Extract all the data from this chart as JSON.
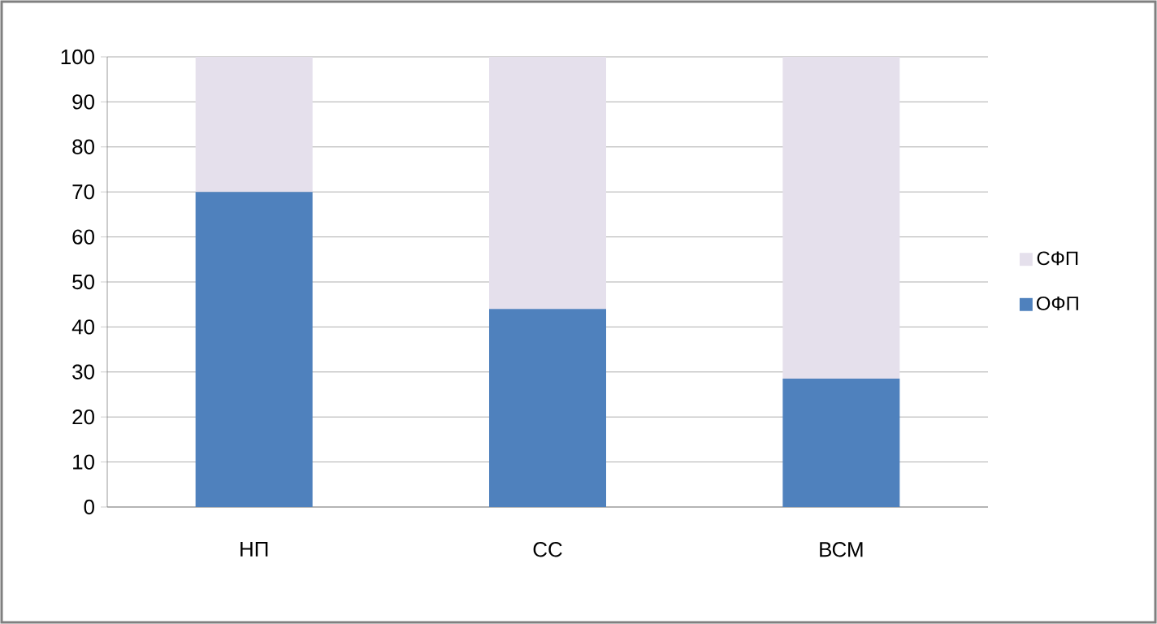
{
  "chart_data": {
    "type": "bar",
    "stacked": true,
    "categories": [
      "НП",
      "СС",
      "ВСМ"
    ],
    "series": [
      {
        "name": "ОФП",
        "color": "#4f81bd",
        "values": [
          70,
          44,
          28.5
        ]
      },
      {
        "name": "СФП",
        "color": "#e5e0ec",
        "values": [
          30,
          56,
          71.5
        ]
      }
    ],
    "ylim": [
      0,
      100
    ],
    "yticks": [
      0,
      10,
      20,
      30,
      40,
      50,
      60,
      70,
      80,
      90,
      100
    ],
    "grid": "y",
    "legend": "right"
  }
}
